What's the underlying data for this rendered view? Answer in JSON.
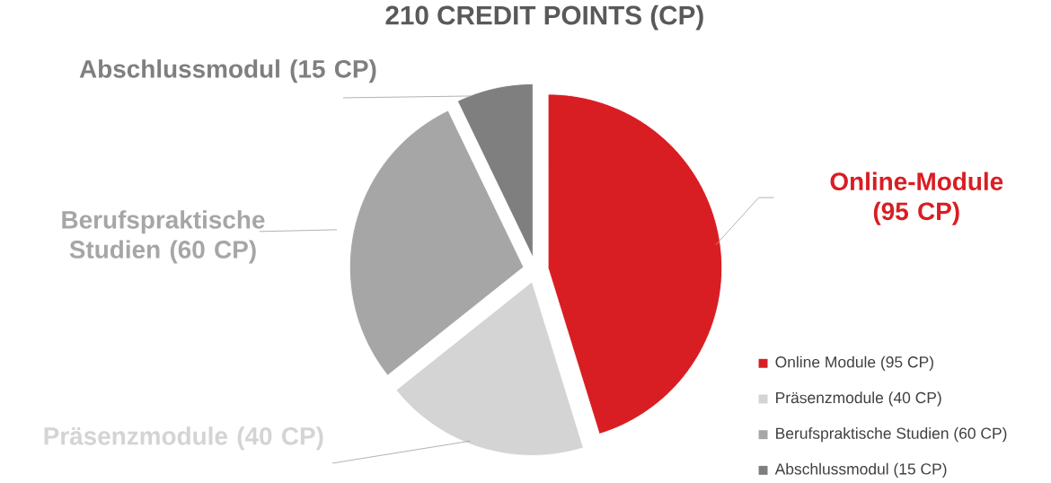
{
  "chart_data": {
    "type": "pie",
    "title": "210 CREDIT POINTS (CP)",
    "categories": [
      "Online Module (95 CP)",
      "Präsenzmodule (40 CP)",
      "Berufspraktische Studien (60 CP)",
      "Abschlussmodul (15 CP)"
    ],
    "values": [
      95,
      40,
      60,
      15
    ],
    "colors": [
      "#d81e23",
      "#d4d4d4",
      "#a6a6a6",
      "#7f7f7f"
    ],
    "annotations": [
      "Online-Module (95 CP)",
      "Präsenzmodule (40 CP)",
      "Berufspraktische Studien (60 CP)",
      "Abschlussmodul (15 CP)"
    ],
    "legend": "bottom right"
  }
}
